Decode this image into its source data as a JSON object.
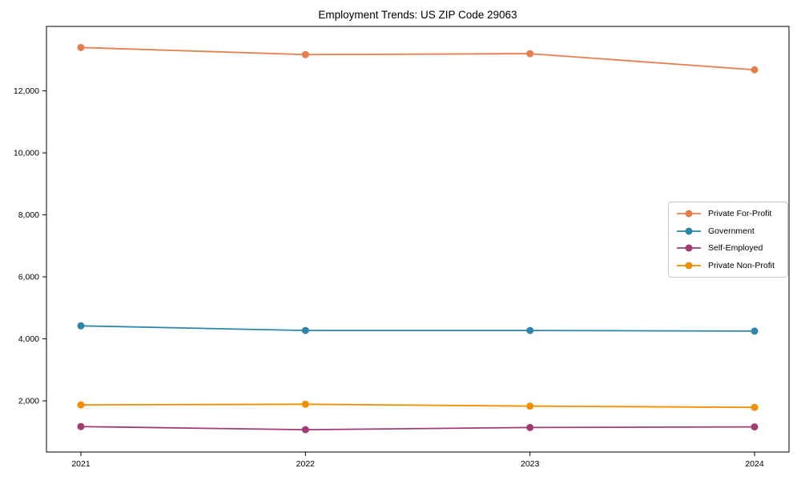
{
  "page": {
    "background_color": "#ffffff",
    "text_color": "#000000"
  },
  "chart_data": {
    "type": "line",
    "title": "Employment Trends: US ZIP Code 29063",
    "xlabel": "",
    "ylabel": "",
    "categories": [
      "2021",
      "2022",
      "2023",
      "2024"
    ],
    "series": [
      {
        "name": "Private For-Profit",
        "color": "#e87d4c",
        "values": [
          13400,
          13170,
          13200,
          12680
        ]
      },
      {
        "name": "Government",
        "color": "#2e86ab",
        "values": [
          4420,
          4270,
          4270,
          4250
        ]
      },
      {
        "name": "Self-Employed",
        "color": "#a23b72",
        "values": [
          1170,
          1070,
          1140,
          1160
        ]
      },
      {
        "name": "Private Non-Profit",
        "color": "#f18f01",
        "values": [
          1870,
          1890,
          1830,
          1790
        ]
      }
    ],
    "ylim": [
      350,
      14080
    ],
    "yticks": {
      "values": [
        2000,
        4000,
        6000,
        8000,
        10000,
        12000
      ],
      "labels": [
        "2,000",
        "4,000",
        "6,000",
        "8,000",
        "10,000",
        "12,000"
      ]
    },
    "grid": false,
    "marker": "circle",
    "axis_color": "#000000",
    "tick_label_color": "#000000",
    "legend": {
      "position": "middle-right",
      "border_color": "#c9c9c9",
      "background": "#ffffff"
    }
  }
}
